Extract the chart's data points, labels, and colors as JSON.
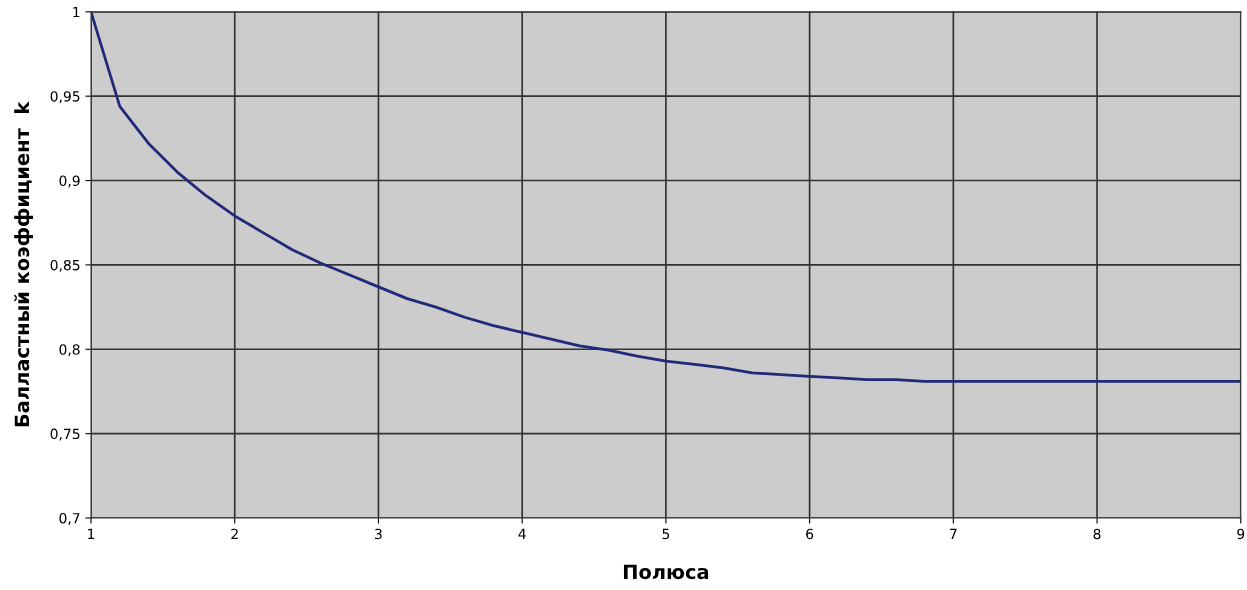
{
  "chart_data": {
    "type": "line",
    "xlabel": "Полюса",
    "ylabel": "Балластный коэффициент  k",
    "x": [
      1,
      1.2,
      1.4,
      1.6,
      1.8,
      2,
      2.2,
      2.4,
      2.6,
      2.8,
      3,
      3.2,
      3.4,
      3.6,
      3.8,
      4,
      4.2,
      4.4,
      4.6,
      4.8,
      5,
      5.2,
      5.4,
      5.6,
      5.8,
      6,
      6.2,
      6.4,
      6.6,
      6.8,
      7,
      7.2,
      7.4,
      7.6,
      7.8,
      8,
      8.2,
      8.4,
      8.6,
      8.8,
      9
    ],
    "series": [
      {
        "color": "#1f2a7a",
        "values": [
          1.0,
          0.944,
          0.922,
          0.905,
          0.891,
          0.879,
          0.869,
          0.859,
          0.851,
          0.844,
          0.837,
          0.83,
          0.825,
          0.819,
          0.814,
          0.81,
          0.806,
          0.802,
          0.7995,
          0.796,
          0.793,
          0.791,
          0.789,
          0.786,
          0.785,
          0.784,
          0.783,
          0.782,
          0.782,
          0.781,
          0.781,
          0.781,
          0.781,
          0.781,
          0.781,
          0.781,
          0.781,
          0.781,
          0.781,
          0.781,
          0.781
        ]
      }
    ],
    "xlim": [
      1,
      9
    ],
    "xticks": [
      1,
      2,
      3,
      4,
      5,
      6,
      7,
      8,
      9
    ],
    "ylim": [
      0.7,
      1
    ],
    "yticks": [
      {
        "value": 0.7,
        "label": "0,7"
      },
      {
        "value": 0.75,
        "label": "0,75"
      },
      {
        "value": 0.8,
        "label": "0,8"
      },
      {
        "value": 0.85,
        "label": "0,85"
      },
      {
        "value": 0.9,
        "label": "0,9"
      },
      {
        "value": 0.95,
        "label": "0,95"
      },
      {
        "value": 1,
        "label": "1"
      }
    ],
    "grid": true,
    "marker": "none",
    "line_style": "solid"
  }
}
